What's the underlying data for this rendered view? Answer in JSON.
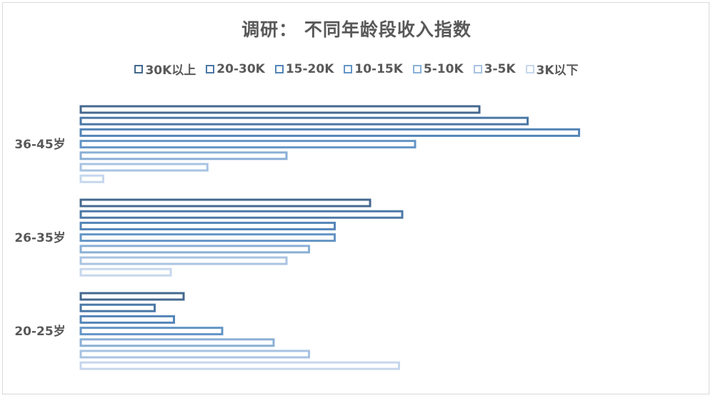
{
  "chart_data": {
    "type": "bar",
    "orientation": "horizontal",
    "title": "调研： 不同年龄段收入指数",
    "xlabel": "",
    "ylabel": "",
    "categories": [
      "36-45岁",
      "26-35岁",
      "20-25岁"
    ],
    "legend_position": "top",
    "grid": false,
    "series": [
      {
        "name": "30K以上",
        "color": "#44688f",
        "values": [
          62,
          45,
          16
        ]
      },
      {
        "name": "20-30K",
        "color": "#4b78a6",
        "values": [
          69.5,
          50,
          11.5
        ]
      },
      {
        "name": "15-20K",
        "color": "#5485b8",
        "values": [
          77.5,
          39.5,
          14.5
        ]
      },
      {
        "name": "10-15K",
        "color": "#6495c6",
        "values": [
          52,
          39.5,
          22
        ]
      },
      {
        "name": "5-10K",
        "color": "#8aafd6",
        "values": [
          32,
          35.5,
          30
        ]
      },
      {
        "name": "3-5K",
        "color": "#a8c3e2",
        "values": [
          19.7,
          32,
          35.5
        ]
      },
      {
        "name": "3K以下",
        "color": "#c6d7ec",
        "values": [
          3.5,
          14,
          49.5
        ]
      }
    ]
  }
}
